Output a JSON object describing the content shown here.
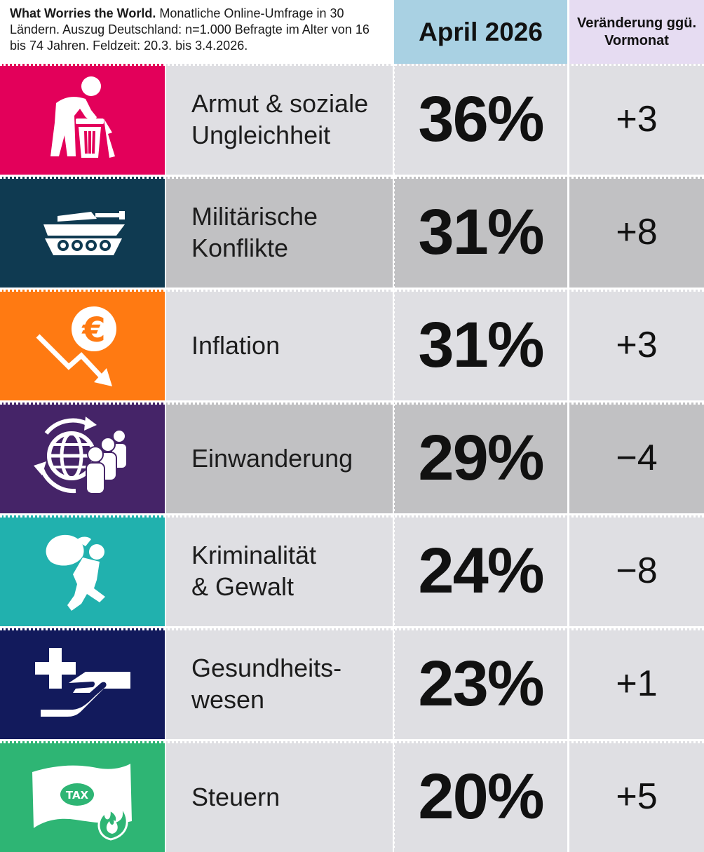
{
  "header": {
    "title_bold": "What Worries the World.",
    "description": "Monatliche Online-Umfrage in 30 Ländern. Auszug Deutschland: n=1.000 Befragte im Alter von 16 bis 74 Jahren. Feldzeit: 20.3. bis 3.4.2026.",
    "period_label": "April 2026",
    "change_label": "Veränderung ggü. Vormonat"
  },
  "chart_data": {
    "type": "table",
    "columns": [
      "April 2026",
      "Veränderung ggü. Vormonat"
    ],
    "rows": [
      {
        "label": "Armut & soziale\nUngleichheit",
        "icon": "poverty-icon",
        "color": "#e3005a",
        "shade": "#dfdfe3",
        "value": "36%",
        "change": "+3"
      },
      {
        "label": "Militärische\nKonflikte",
        "icon": "tank-icon",
        "color": "#0f3a51",
        "shade": "#c1c1c3",
        "value": "31%",
        "change": "+8"
      },
      {
        "label": "Inflation",
        "icon": "euro-decline-icon",
        "color": "#ff7a12",
        "shade": "#dfdfe3",
        "value": "31%",
        "change": "+3"
      },
      {
        "label": "Einwanderung",
        "icon": "migration-icon",
        "color": "#452468",
        "shade": "#c1c1c3",
        "value": "29%",
        "change": "−4"
      },
      {
        "label": "Kriminalität\n& Gewalt",
        "icon": "thief-icon",
        "color": "#21b1ae",
        "shade": "#dfdfe3",
        "value": "24%",
        "change": "−8"
      },
      {
        "label": "Gesundheits-\nwesen",
        "icon": "healthcare-icon",
        "color": "#121a5c",
        "shade": "#dfdfe3",
        "value": "23%",
        "change": "+1"
      },
      {
        "label": "Steuern",
        "icon": "tax-icon",
        "color": "#2eb574",
        "shade": "#dfdfe3",
        "value": "20%",
        "change": "+5"
      }
    ],
    "icon_text": {
      "tax": "TAX"
    }
  }
}
